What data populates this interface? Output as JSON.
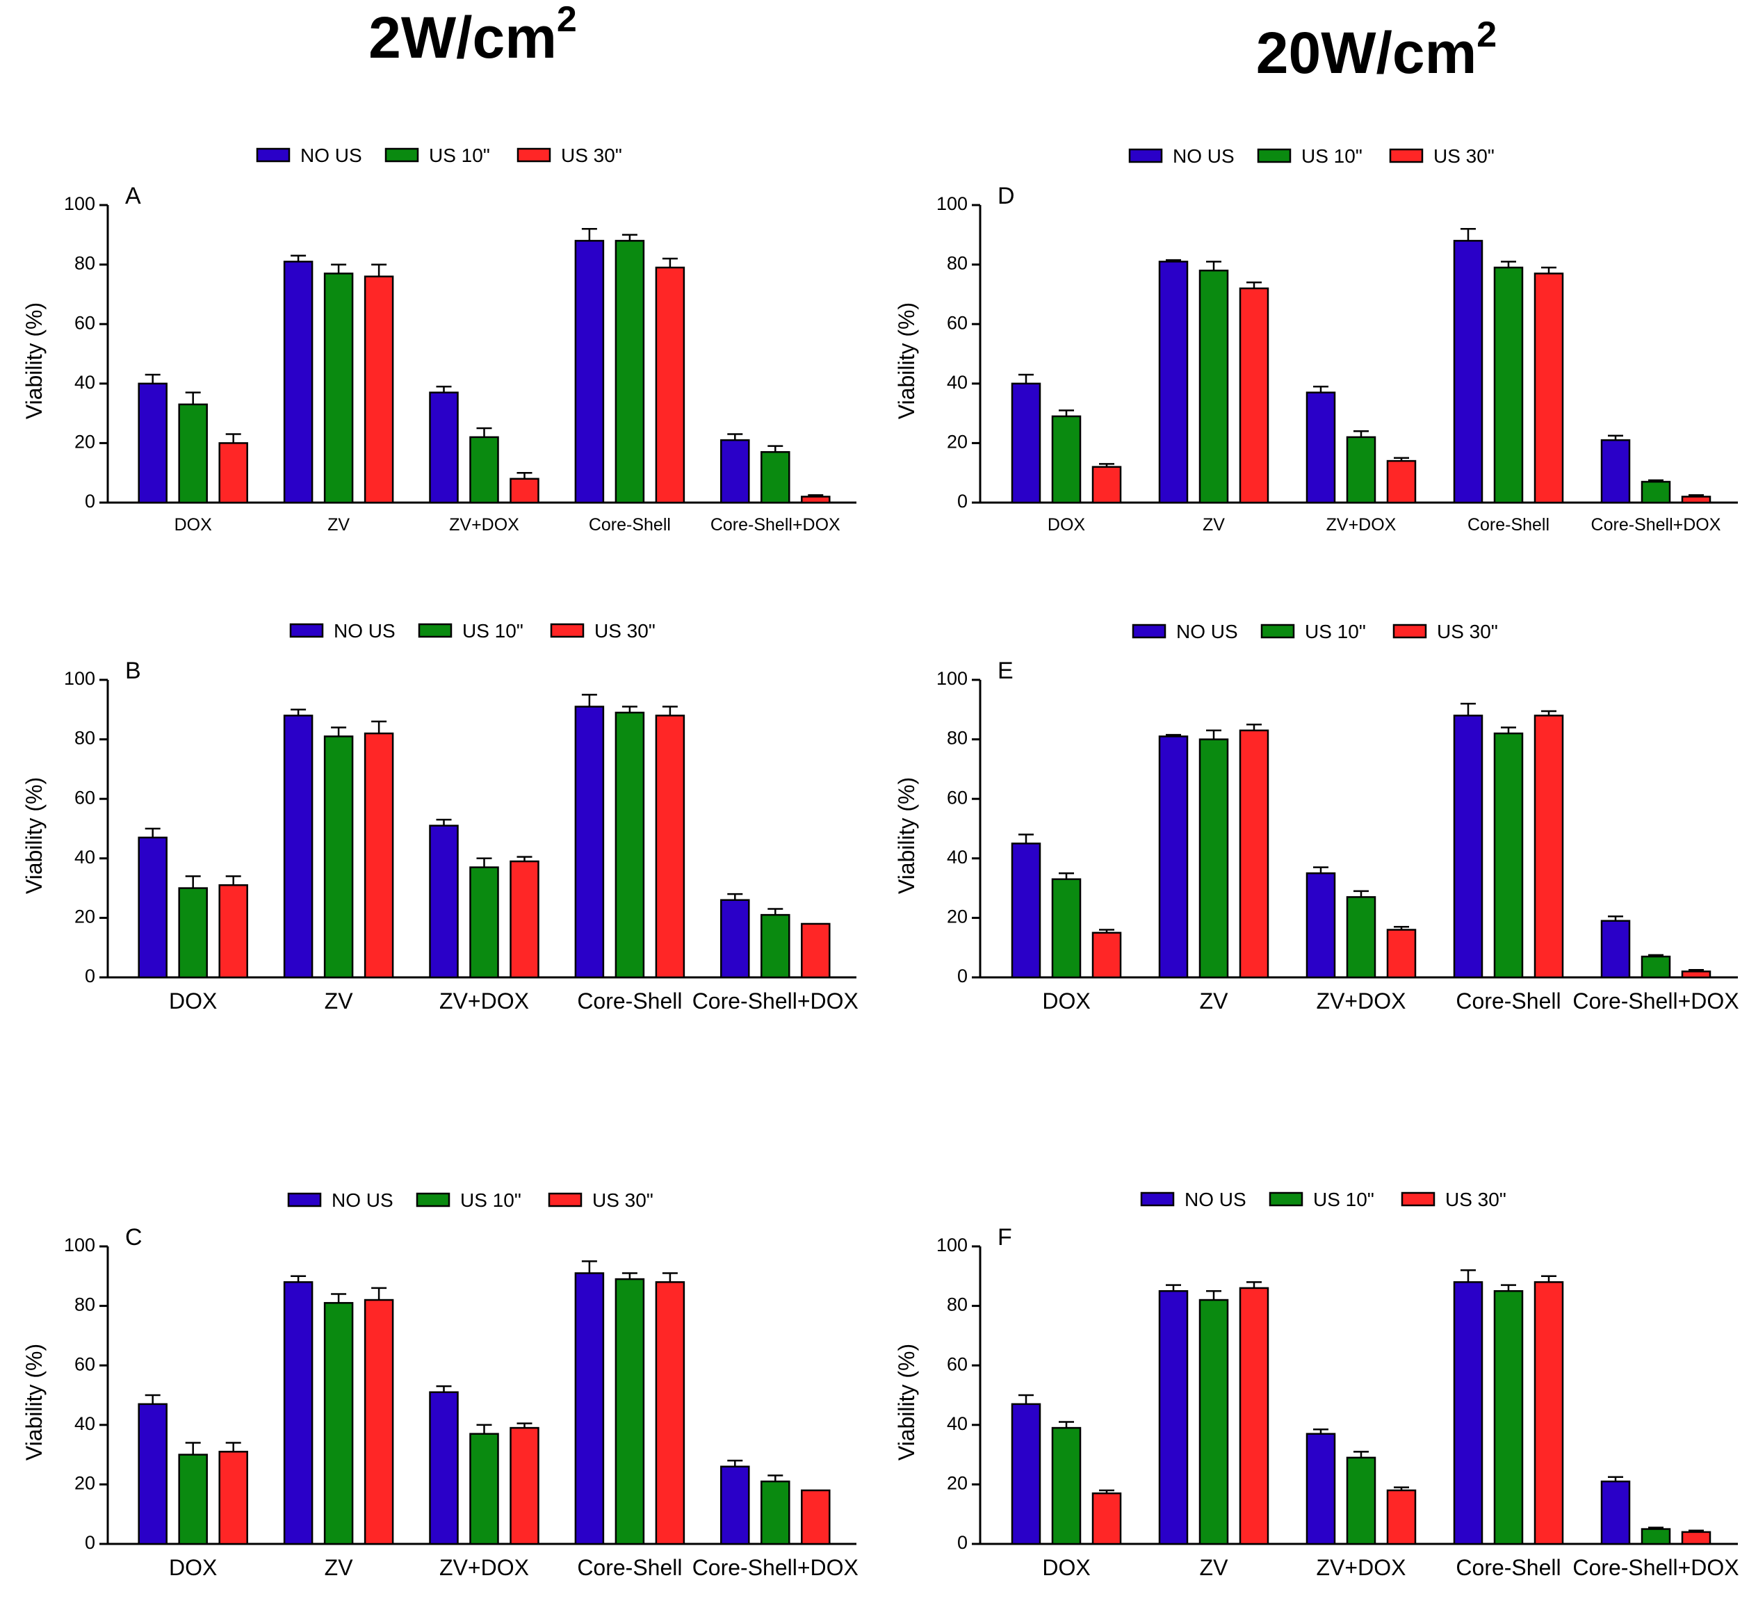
{
  "titles": {
    "left": "2W/cm",
    "left_sup": "2",
    "right": "20W/cm",
    "right_sup": "2"
  },
  "colors": {
    "NO US": "#2a00c8",
    "US 10\"": "#0a8a10",
    "US 30\"": "#ff2626"
  },
  "chart_data": [
    {
      "type": "bar",
      "panel": "A",
      "column": "2W/cm2",
      "categories": [
        "DOX",
        "ZV",
        "ZV+DOX",
        "Core-Shell",
        "Core-Shell+DOX"
      ],
      "ylabel": "Viability (%)",
      "ylim": [
        0,
        100
      ],
      "yticks": [
        0,
        20,
        40,
        60,
        80,
        100
      ],
      "series": [
        {
          "name": "NO US",
          "values": [
            40,
            81,
            37,
            88,
            21
          ],
          "errors": [
            3,
            2,
            2,
            4,
            2
          ]
        },
        {
          "name": "US 10\"",
          "values": [
            33,
            77,
            22,
            88,
            17
          ],
          "errors": [
            4,
            3,
            3,
            2,
            2
          ]
        },
        {
          "name": "US 30\"",
          "values": [
            20,
            76,
            8,
            79,
            2
          ],
          "errors": [
            3,
            4,
            2,
            3,
            0.5
          ]
        }
      ]
    },
    {
      "type": "bar",
      "panel": "B",
      "column": "2W/cm2",
      "categories": [
        "DOX",
        "ZV",
        "ZV+DOX",
        "Core-Shell",
        "Core-Shell+DOX"
      ],
      "ylabel": "Viability (%)",
      "ylim": [
        0,
        100
      ],
      "yticks": [
        0,
        20,
        40,
        60,
        80,
        100
      ],
      "series": [
        {
          "name": "NO US",
          "values": [
            47,
            88,
            51,
            91,
            26
          ],
          "errors": [
            3,
            2,
            2,
            4,
            2
          ]
        },
        {
          "name": "US 10\"",
          "values": [
            30,
            81,
            37,
            89,
            21
          ],
          "errors": [
            4,
            3,
            3,
            2,
            2
          ]
        },
        {
          "name": "US 30\"",
          "values": [
            31,
            82,
            39,
            88,
            18
          ],
          "errors": [
            3,
            4,
            1.5,
            3,
            0
          ]
        }
      ]
    },
    {
      "type": "bar",
      "panel": "C",
      "column": "2W/cm2",
      "categories": [
        "DOX",
        "ZV",
        "ZV+DOX",
        "Core-Shell",
        "Core-Shell+DOX"
      ],
      "ylabel": "Viability (%)",
      "ylim": [
        0,
        100
      ],
      "yticks": [
        0,
        20,
        40,
        60,
        80,
        100
      ],
      "series": [
        {
          "name": "NO US",
          "values": [
            47,
            88,
            51,
            91,
            26
          ],
          "errors": [
            3,
            2,
            2,
            4,
            2
          ]
        },
        {
          "name": "US 10\"",
          "values": [
            30,
            81,
            37,
            89,
            21
          ],
          "errors": [
            4,
            3,
            3,
            2,
            2
          ]
        },
        {
          "name": "US 30\"",
          "values": [
            31,
            82,
            39,
            88,
            18
          ],
          "errors": [
            3,
            4,
            1.5,
            3,
            0
          ]
        }
      ]
    },
    {
      "type": "bar",
      "panel": "D",
      "column": "20W/cm2",
      "categories": [
        "DOX",
        "ZV",
        "ZV+DOX",
        "Core-Shell",
        "Core-Shell+DOX"
      ],
      "ylabel": "Viability (%)",
      "ylim": [
        0,
        100
      ],
      "yticks": [
        0,
        20,
        40,
        60,
        80,
        100
      ],
      "series": [
        {
          "name": "NO US",
          "values": [
            40,
            81,
            37,
            88,
            21
          ],
          "errors": [
            3,
            0.5,
            2,
            4,
            1.5
          ]
        },
        {
          "name": "US 10\"",
          "values": [
            29,
            78,
            22,
            79,
            7
          ],
          "errors": [
            2,
            3,
            2,
            2,
            0.5
          ]
        },
        {
          "name": "US 30\"",
          "values": [
            12,
            72,
            14,
            77,
            2
          ],
          "errors": [
            1,
            2,
            1,
            2,
            0.5
          ]
        }
      ]
    },
    {
      "type": "bar",
      "panel": "E",
      "column": "20W/cm2",
      "categories": [
        "DOX",
        "ZV",
        "ZV+DOX",
        "Core-Shell",
        "Core-Shell+DOX"
      ],
      "ylabel": "Viability (%)",
      "ylim": [
        0,
        100
      ],
      "yticks": [
        0,
        20,
        40,
        60,
        80,
        100
      ],
      "series": [
        {
          "name": "NO US",
          "values": [
            45,
            81,
            35,
            88,
            19
          ],
          "errors": [
            3,
            0.5,
            2,
            4,
            1.5
          ]
        },
        {
          "name": "US 10\"",
          "values": [
            33,
            80,
            27,
            82,
            7
          ],
          "errors": [
            2,
            3,
            2,
            2,
            0.5
          ]
        },
        {
          "name": "US 30\"",
          "values": [
            15,
            83,
            16,
            88,
            2
          ],
          "errors": [
            1,
            2,
            1,
            1.5,
            0.5
          ]
        }
      ]
    },
    {
      "type": "bar",
      "panel": "F",
      "column": "20W/cm2",
      "categories": [
        "DOX",
        "ZV",
        "ZV+DOX",
        "Core-Shell",
        "Core-Shell+DOX"
      ],
      "ylabel": "Viability (%)",
      "ylim": [
        0,
        100
      ],
      "yticks": [
        0,
        20,
        40,
        60,
        80,
        100
      ],
      "series": [
        {
          "name": "NO US",
          "values": [
            47,
            85,
            37,
            88,
            21
          ],
          "errors": [
            3,
            2,
            1.5,
            4,
            1.5
          ]
        },
        {
          "name": "US 10\"",
          "values": [
            39,
            82,
            29,
            85,
            5
          ],
          "errors": [
            2,
            3,
            2,
            2,
            0.5
          ]
        },
        {
          "name": "US 30\"",
          "values": [
            17,
            86,
            18,
            88,
            4
          ],
          "errors": [
            1,
            2,
            1,
            2,
            0.5
          ]
        }
      ]
    }
  ]
}
